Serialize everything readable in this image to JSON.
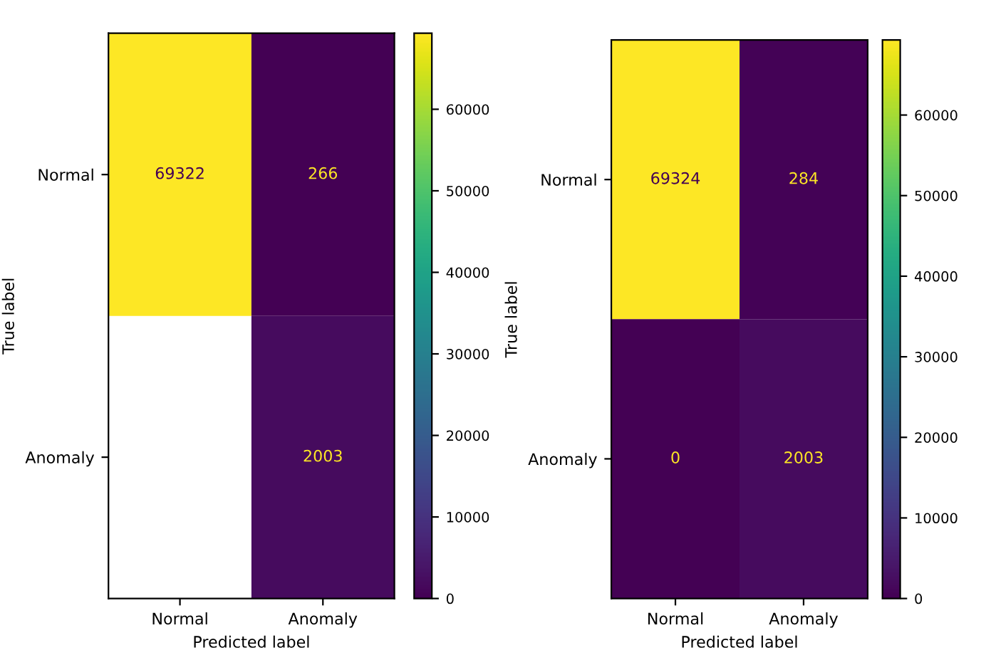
{
  "chart_data": [
    {
      "type": "heatmap",
      "xlabel": "Predicted label",
      "ylabel": "True label",
      "categories": [
        "Normal",
        "Anomaly"
      ],
      "y_categories": [
        "Normal",
        "Anomaly"
      ],
      "cells": [
        [
          69322,
          266
        ],
        [
          null,
          2003
        ]
      ],
      "data_labels": true,
      "clim": [
        0,
        69322
      ],
      "cticks": [
        0,
        10000,
        20000,
        30000,
        40000,
        50000,
        60000
      ]
    },
    {
      "type": "heatmap",
      "xlabel": "Predicted label",
      "ylabel": "True label",
      "categories": [
        "Normal",
        "Anomaly"
      ],
      "y_categories": [
        "Normal",
        "Anomaly"
      ],
      "cells": [
        [
          69324,
          284
        ],
        [
          0,
          2003
        ]
      ],
      "data_labels": true,
      "clim": [
        0,
        69324
      ],
      "cticks": [
        0,
        10000,
        20000,
        30000,
        40000,
        50000,
        60000
      ]
    }
  ]
}
